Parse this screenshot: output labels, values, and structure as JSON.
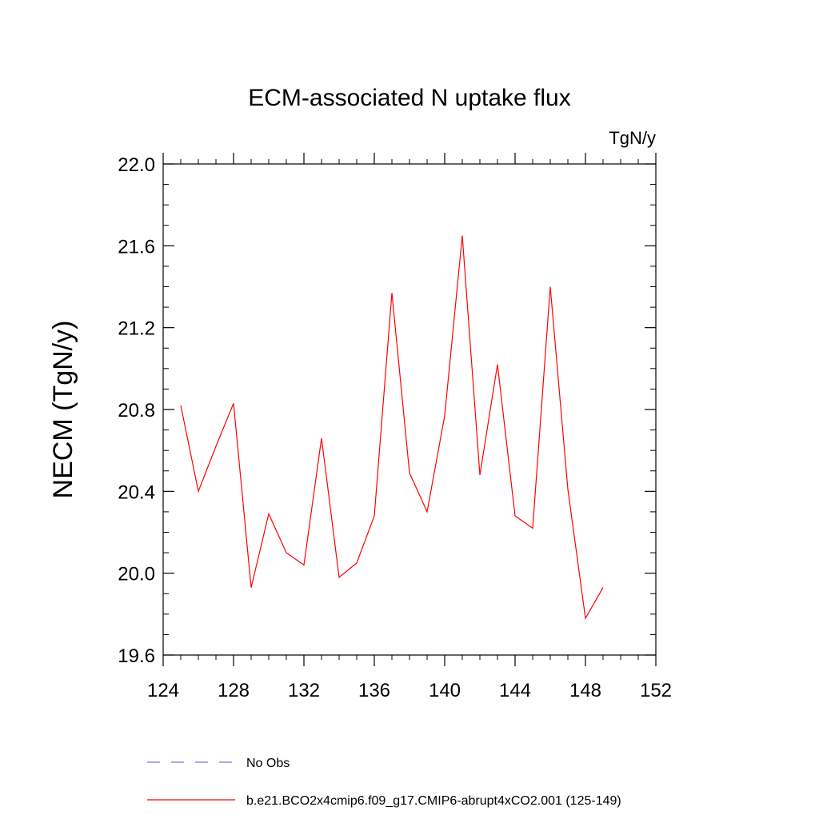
{
  "chart_data": {
    "type": "line",
    "title": "ECM-associated N uptake flux",
    "units_label": "TgN/y",
    "ylabel": "NECM  (TgN/y)",
    "xlabel": "",
    "xlim": [
      124,
      152
    ],
    "ylim": [
      19.6,
      22.0
    ],
    "x_ticks": [
      124,
      128,
      132,
      136,
      140,
      144,
      148,
      152
    ],
    "x_tick_labels": [
      "124",
      "128",
      "132",
      "136",
      "140",
      "144",
      "148",
      "152"
    ],
    "y_ticks": [
      19.6,
      20.0,
      20.4,
      20.8,
      21.2,
      21.6,
      22.0
    ],
    "y_tick_labels": [
      "19.6",
      "20.0",
      "20.4",
      "20.8",
      "21.2",
      "21.6",
      "22.0"
    ],
    "grid": false,
    "legend_position": "bottom",
    "series": [
      {
        "name": "b.e21.BCO2x4cmip6.f09_g17.CMIP6-abrupt4xCO2.001 (125-149)",
        "color": "#ff0000",
        "style": "solid",
        "x": [
          125,
          126,
          127,
          128,
          129,
          130,
          131,
          132,
          133,
          134,
          135,
          136,
          137,
          138,
          139,
          140,
          141,
          142,
          143,
          144,
          145,
          146,
          147,
          148,
          149
        ],
        "y": [
          20.82,
          20.4,
          20.62,
          20.83,
          19.93,
          20.29,
          20.1,
          20.04,
          20.66,
          19.98,
          20.05,
          20.28,
          21.37,
          20.49,
          20.3,
          20.77,
          21.65,
          20.48,
          21.02,
          20.28,
          20.22,
          21.4,
          20.41,
          19.78,
          19.93
        ]
      },
      {
        "name": "No Obs",
        "color": "#7777cc",
        "style": "dashed",
        "x": [],
        "y": []
      }
    ]
  }
}
